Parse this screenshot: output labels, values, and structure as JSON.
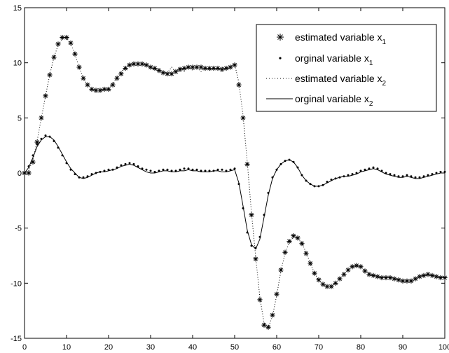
{
  "chart_data": {
    "type": "line",
    "xlim": [
      0,
      100
    ],
    "ylim": [
      -15,
      15
    ],
    "xticks": [
      0,
      10,
      20,
      30,
      40,
      50,
      60,
      70,
      80,
      90,
      100
    ],
    "yticks": [
      -15,
      -10,
      -5,
      0,
      5,
      10,
      15
    ],
    "grid": false,
    "legend": "top-right",
    "series": [
      {
        "name": "estimated variable x_1",
        "label": "estimated variable x",
        "sub": "1",
        "style": "star-markers",
        "x": [
          0,
          1,
          2,
          3,
          4,
          5,
          6,
          7,
          8,
          9,
          10,
          11,
          12,
          13,
          14,
          15,
          16,
          17,
          18,
          19,
          20,
          21,
          22,
          23,
          24,
          25,
          26,
          27,
          28,
          29,
          30,
          31,
          32,
          33,
          34,
          35,
          36,
          37,
          38,
          39,
          40,
          41,
          42,
          43,
          44,
          45,
          46,
          47,
          48,
          49,
          50,
          51,
          52,
          53,
          54,
          55,
          56,
          57,
          58,
          59,
          60,
          61,
          62,
          63,
          64,
          65,
          66,
          67,
          68,
          69,
          70,
          71,
          72,
          73,
          74,
          75,
          76,
          77,
          78,
          79,
          80,
          81,
          82,
          83,
          84,
          85,
          86,
          87,
          88,
          89,
          90,
          91,
          92,
          93,
          94,
          95,
          96,
          97,
          98,
          99,
          100
        ],
        "y": [
          0,
          0,
          1,
          2.8,
          5,
          7,
          8.9,
          10.5,
          11.7,
          12.3,
          12.3,
          11.8,
          10.8,
          9.6,
          8.6,
          8,
          7.6,
          7.5,
          7.5,
          7.6,
          7.6,
          8,
          8.6,
          9,
          9.5,
          9.8,
          9.9,
          9.9,
          9.9,
          9.8,
          9.6,
          9.5,
          9.3,
          9.1,
          9,
          9,
          9.2,
          9.4,
          9.5,
          9.6,
          9.6,
          9.6,
          9.6,
          9.5,
          9.5,
          9.5,
          9.5,
          9.4,
          9.5,
          9.6,
          9.8,
          8,
          5,
          0.8,
          -3.8,
          -7.8,
          -11.5,
          -13.8,
          -14,
          -12.9,
          -11,
          -8.8,
          -7.2,
          -6.2,
          -5.7,
          -5.9,
          -6.4,
          -7.3,
          -8.2,
          -9.1,
          -9.7,
          -10.1,
          -10.3,
          -10.3,
          -10,
          -9.6,
          -9.2,
          -8.8,
          -8.5,
          -8.4,
          -8.5,
          -8.9,
          -9.2,
          -9.3,
          -9.4,
          -9.5,
          -9.5,
          -9.5,
          -9.6,
          -9.7,
          -9.8,
          -9.8,
          -9.8,
          -9.6,
          -9.4,
          -9.3,
          -9.2,
          -9.3,
          -9.4,
          -9.5,
          -9.5
        ]
      },
      {
        "name": "orginal variable x_1",
        "label": "orginal variable x",
        "sub": "1",
        "style": "dot-markers",
        "x": [
          0,
          1,
          2,
          3,
          4,
          5,
          6,
          7,
          8,
          9,
          10,
          11,
          12,
          13,
          14,
          15,
          16,
          17,
          18,
          19,
          20,
          21,
          22,
          23,
          24,
          25,
          26,
          27,
          28,
          29,
          30,
          31,
          32,
          33,
          34,
          35,
          36,
          37,
          38,
          39,
          40,
          41,
          42,
          43,
          44,
          45,
          46,
          47,
          48,
          49,
          50,
          51,
          52,
          53,
          54,
          55,
          56,
          57,
          58,
          59,
          60,
          61,
          62,
          63,
          64,
          65,
          66,
          67,
          68,
          69,
          70,
          71,
          72,
          73,
          74,
          75,
          76,
          77,
          78,
          79,
          80,
          81,
          82,
          83,
          84,
          85,
          86,
          87,
          88,
          89,
          90,
          91,
          92,
          93,
          94,
          95,
          96,
          97,
          98,
          99,
          100
        ],
        "y": [
          0,
          0.6,
          1.6,
          2.6,
          3.1,
          3.4,
          3.3,
          2.9,
          2.3,
          1.6,
          0.9,
          0.3,
          -0.1,
          -0.4,
          -0.4,
          -0.3,
          -0.1,
          0,
          0.1,
          0.2,
          0.3,
          0.3,
          0.5,
          0.7,
          0.8,
          0.9,
          0.8,
          0.6,
          0.4,
          0.3,
          0.2,
          0.1,
          0.2,
          0.3,
          0.3,
          0.2,
          0.2,
          0.3,
          0.4,
          0.4,
          0.3,
          0.3,
          0.2,
          0.2,
          0.2,
          0.2,
          0.3,
          0.3,
          0.2,
          0.3,
          0.4,
          -1,
          -3.2,
          -5.4,
          -6.6,
          -6.8,
          -5.8,
          -3.8,
          -1.8,
          -0.4,
          0.3,
          0.8,
          1.1,
          1.2,
          1,
          0.5,
          -0.2,
          -0.7,
          -1,
          -1.2,
          -1.2,
          -1.1,
          -0.8,
          -0.6,
          -0.5,
          -0.4,
          -0.3,
          -0.2,
          -0.1,
          0,
          0.2,
          0.3,
          0.4,
          0.5,
          0.4,
          0.2,
          0,
          -0.1,
          -0.2,
          -0.3,
          -0.3,
          -0.2,
          -0.3,
          -0.4,
          -0.4,
          -0.3,
          -0.2,
          -0.1,
          0,
          0.1,
          0.1
        ]
      },
      {
        "name": "estimated variable x_2",
        "label": "estimated variable x",
        "sub": "2",
        "style": "dotted-line",
        "x": [
          0,
          1,
          2,
          3,
          4,
          5,
          6,
          7,
          8,
          9,
          10,
          11,
          12,
          13,
          14,
          15,
          16,
          17,
          18,
          19,
          20,
          21,
          22,
          23,
          24,
          25,
          26,
          27,
          28,
          29,
          30,
          31,
          32,
          33,
          34,
          35,
          36,
          37,
          38,
          39,
          40,
          41,
          42,
          43,
          44,
          45,
          46,
          47,
          48,
          49,
          50,
          51,
          52,
          53,
          54,
          55,
          56,
          57,
          58,
          59,
          60,
          61,
          62,
          63,
          64,
          65,
          66,
          67,
          68,
          69,
          70,
          71,
          72,
          73,
          74,
          75,
          76,
          77,
          78,
          79,
          80,
          81,
          82,
          83,
          84,
          85,
          86,
          87,
          88,
          89,
          90,
          91,
          92,
          93,
          94,
          95,
          96,
          97,
          98,
          99,
          100
        ],
        "y": [
          0,
          0.2,
          1.2,
          2.9,
          5,
          7,
          8.9,
          10.5,
          11.6,
          12.2,
          12.2,
          11.7,
          10.8,
          9.6,
          8.6,
          8,
          7.6,
          7.5,
          7.5,
          7.6,
          7.7,
          8.1,
          8.7,
          9.2,
          9.6,
          9.8,
          9.9,
          9.9,
          9.9,
          9.8,
          9.6,
          9.4,
          9.3,
          9.1,
          9.1,
          9.6,
          9.1,
          9.6,
          9.2,
          9.7,
          9.3,
          9.6,
          9.2,
          9.6,
          9.3,
          9.6,
          9.4,
          9.6,
          9.5,
          9.7,
          9.9,
          8.2,
          5.2,
          1,
          -3.6,
          -7.6,
          -11.3,
          -13.6,
          -14,
          -13,
          -11.1,
          -8.9,
          -7.3,
          -6.3,
          -5.8,
          -5.9,
          -6.4,
          -7.2,
          -8.2,
          -9.1,
          -9.7,
          -10.1,
          -10.3,
          -10.3,
          -10,
          -9.6,
          -9.2,
          -8.8,
          -8.5,
          -8.4,
          -8.5,
          -8.8,
          -9.1,
          -9.3,
          -9.4,
          -9.5,
          -9.5,
          -9.5,
          -9.6,
          -9.7,
          -9.8,
          -9.8,
          -9.7,
          -9.6,
          -9.4,
          -9.3,
          -9.2,
          -9.3,
          -9.4,
          -9.4,
          -9.5
        ]
      },
      {
        "name": "orginal variable x_2",
        "label": "orginal variable x",
        "sub": "2",
        "style": "solid-line",
        "x": [
          0,
          1,
          2,
          3,
          4,
          5,
          6,
          7,
          8,
          9,
          10,
          11,
          12,
          13,
          14,
          15,
          16,
          17,
          18,
          19,
          20,
          21,
          22,
          23,
          24,
          25,
          26,
          27,
          28,
          29,
          30,
          31,
          32,
          33,
          34,
          35,
          36,
          37,
          38,
          39,
          40,
          41,
          42,
          43,
          44,
          45,
          46,
          47,
          48,
          49,
          50,
          51,
          52,
          53,
          54,
          55,
          56,
          57,
          58,
          59,
          60,
          61,
          62,
          63,
          64,
          65,
          66,
          67,
          68,
          69,
          70,
          71,
          72,
          73,
          74,
          75,
          76,
          77,
          78,
          79,
          80,
          81,
          82,
          83,
          84,
          85,
          86,
          87,
          88,
          89,
          90,
          91,
          92,
          93,
          94,
          95,
          96,
          97,
          98,
          99,
          100
        ],
        "y": [
          0,
          0.5,
          1.4,
          2.4,
          3,
          3.3,
          3.3,
          3,
          2.4,
          1.7,
          1,
          0.4,
          0,
          -0.4,
          -0.5,
          -0.4,
          -0.2,
          0,
          0.1,
          0.1,
          0.2,
          0.3,
          0.4,
          0.6,
          0.7,
          0.8,
          0.7,
          0.5,
          0.3,
          0.1,
          0,
          0,
          0.1,
          0.2,
          0.2,
          0.1,
          0.1,
          0.2,
          0.2,
          0.3,
          0.2,
          0.2,
          0.1,
          0.1,
          0.1,
          0.2,
          0.2,
          0.1,
          0.1,
          0.2,
          0.3,
          -0.9,
          -3,
          -5.2,
          -6.5,
          -6.9,
          -6,
          -4,
          -2,
          -0.5,
          0.3,
          0.8,
          1.1,
          1.2,
          1,
          0.5,
          -0.2,
          -0.7,
          -1,
          -1.2,
          -1.2,
          -1.1,
          -0.9,
          -0.7,
          -0.5,
          -0.4,
          -0.3,
          -0.3,
          -0.2,
          -0.1,
          0.1,
          0.2,
          0.3,
          0.4,
          0.3,
          0.1,
          -0.1,
          -0.2,
          -0.3,
          -0.4,
          -0.4,
          -0.3,
          -0.4,
          -0.5,
          -0.5,
          -0.4,
          -0.3,
          -0.2,
          -0.1,
          0,
          0
        ]
      }
    ]
  }
}
